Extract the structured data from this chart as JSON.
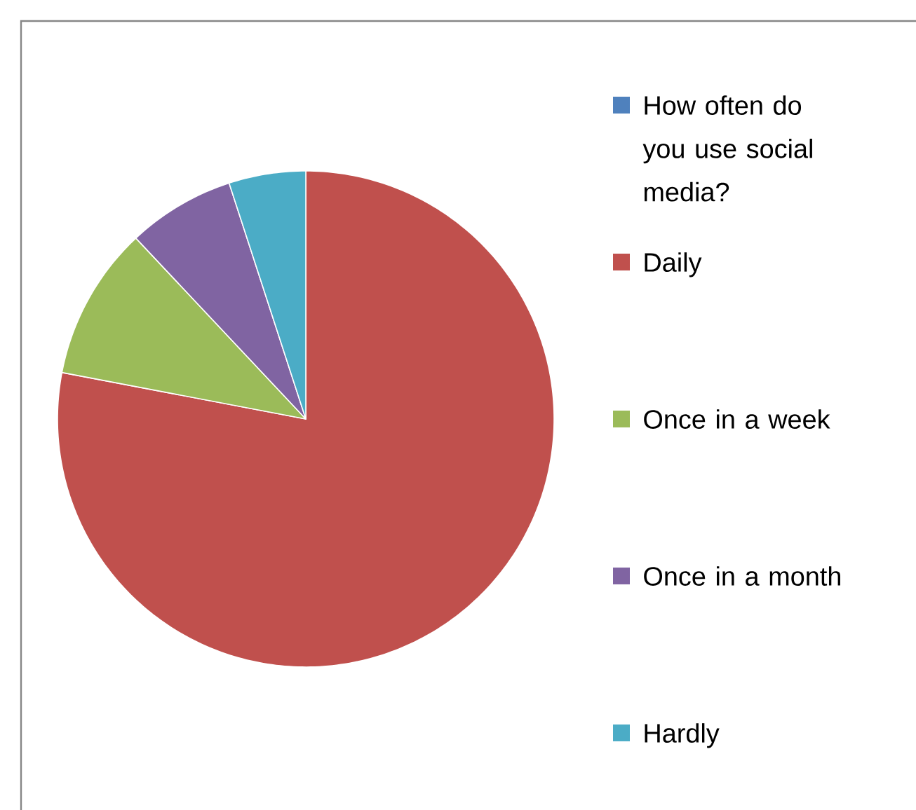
{
  "chart_data": {
    "type": "pie",
    "categories": [
      "How often do you use social media?",
      "Daily",
      "Once in a week",
      "Once in a month",
      "Hardly"
    ],
    "values": [
      0,
      78,
      10,
      7,
      5
    ],
    "colors": [
      "#4f81bd",
      "#c0504d",
      "#9bbb59",
      "#8064a2",
      "#4bacc6"
    ],
    "legend": "right"
  }
}
